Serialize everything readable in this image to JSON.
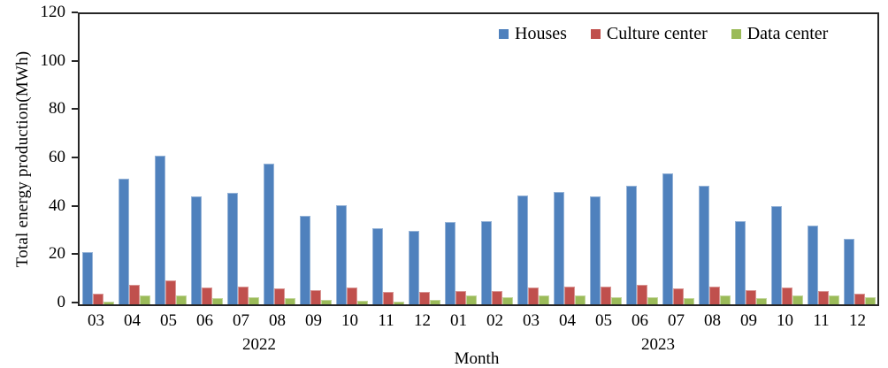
{
  "chart_data": {
    "type": "bar",
    "title": "",
    "xlabel": "Month",
    "ylabel": "Total energy production(MWh)",
    "ylim": [
      0,
      120
    ],
    "yticks": [
      0,
      20,
      40,
      60,
      80,
      100,
      120
    ],
    "grid": false,
    "legend_position": "top-right",
    "categories": [
      "03",
      "04",
      "05",
      "06",
      "07",
      "08",
      "09",
      "10",
      "11",
      "12",
      "01",
      "02",
      "03",
      "04",
      "05",
      "06",
      "07",
      "08",
      "09",
      "10",
      "11",
      "12"
    ],
    "year_groups": [
      {
        "label": "2022",
        "start": 0,
        "count": 10
      },
      {
        "label": "2023",
        "start": 10,
        "count": 12
      }
    ],
    "series": [
      {
        "name": "Houses",
        "color": "#4f81bd",
        "border_color": "#95b3d7",
        "values": [
          21.5,
          52,
          61.5,
          44.5,
          46,
          58,
          36.5,
          41,
          31.5,
          30.5,
          34,
          34.5,
          45,
          46.5,
          44.5,
          49,
          54,
          49,
          34.5,
          40.5,
          32.5,
          27
        ]
      },
      {
        "name": "Culture center",
        "color": "#c0504d",
        "border_color": "#d99694",
        "values": [
          4.5,
          8,
          10,
          7,
          7.5,
          6.5,
          6,
          7,
          5,
          5,
          5.5,
          5.5,
          7,
          7.5,
          7.5,
          8,
          6.5,
          7.5,
          6,
          7,
          5.5,
          4.5
        ]
      },
      {
        "name": "Data center",
        "color": "#9bbb59",
        "border_color": "#c3d69b",
        "values": [
          1,
          3.5,
          3.5,
          2.5,
          3,
          2.5,
          2,
          1.5,
          1,
          2,
          3.5,
          3,
          3.5,
          3.5,
          3,
          3,
          2.5,
          3.5,
          2.5,
          3.5,
          3.5,
          3
        ]
      }
    ],
    "axis_color": "#262626",
    "text_color": "#000000"
  }
}
